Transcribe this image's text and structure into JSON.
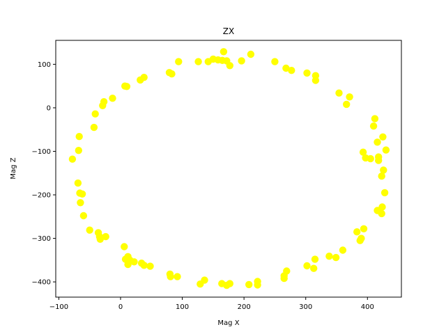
{
  "chart_data": {
    "type": "scatter",
    "title": "ZX",
    "xlabel": "Mag X",
    "ylabel": "Mag Z",
    "xlim": [
      -105,
      455
    ],
    "ylim": [
      -435,
      155
    ],
    "xticks": [
      -100,
      0,
      100,
      200,
      300,
      400
    ],
    "yticks": [
      -400,
      -300,
      -200,
      -100,
      0,
      100
    ],
    "xtick_labels": [
      "−100",
      "0",
      "100",
      "200",
      "300",
      "400"
    ],
    "ytick_labels": [
      "−400",
      "−300",
      "−200",
      "−100",
      "0",
      "100"
    ],
    "grid": false,
    "marker_color": "#ffff00",
    "series": [
      {
        "points": [
          [
            167,
            129
          ],
          [
            211,
            123
          ],
          [
            150,
            112
          ],
          [
            158,
            110
          ],
          [
            165,
            109
          ],
          [
            172,
            108
          ],
          [
            142,
            106
          ],
          [
            126,
            106
          ],
          [
            94,
            106
          ],
          [
            196,
            108
          ],
          [
            250,
            106
          ],
          [
            177,
            97
          ],
          [
            268,
            91
          ],
          [
            277,
            86
          ],
          [
            302,
            80
          ],
          [
            316,
            74
          ],
          [
            79,
            81
          ],
          [
            83,
            78
          ],
          [
            38,
            70
          ],
          [
            32,
            64
          ],
          [
            316,
            63
          ],
          [
            7,
            50
          ],
          [
            10,
            49
          ],
          [
            354,
            34
          ],
          [
            371,
            25
          ],
          [
            -13,
            22
          ],
          [
            -27,
            14
          ],
          [
            -29,
            5
          ],
          [
            366,
            8
          ],
          [
            -41,
            -14
          ],
          [
            -43,
            -45
          ],
          [
            412,
            -25
          ],
          [
            410,
            -42
          ],
          [
            -67,
            -66
          ],
          [
            425,
            -67
          ],
          [
            416,
            -79
          ],
          [
            -68,
            -98
          ],
          [
            430,
            -97
          ],
          [
            393,
            -102
          ],
          [
            397,
            -115
          ],
          [
            405,
            -117
          ],
          [
            418,
            -113
          ],
          [
            418,
            -121
          ],
          [
            -78,
            -118
          ],
          [
            426,
            -143
          ],
          [
            423,
            -157
          ],
          [
            -69,
            -173
          ],
          [
            -66,
            -196
          ],
          [
            -62,
            -198
          ],
          [
            428,
            -195
          ],
          [
            -65,
            -218
          ],
          [
            424,
            -228
          ],
          [
            416,
            -236
          ],
          [
            423,
            -243
          ],
          [
            -60,
            -248
          ],
          [
            -50,
            -281
          ],
          [
            -36,
            -287
          ],
          [
            394,
            -278
          ],
          [
            383,
            -285
          ],
          [
            -34,
            -296
          ],
          [
            -24,
            -296
          ],
          [
            -33,
            -302
          ],
          [
            390,
            -300
          ],
          [
            388,
            -305
          ],
          [
            6,
            -319
          ],
          [
            360,
            -327
          ],
          [
            12,
            -342
          ],
          [
            8,
            -348
          ],
          [
            338,
            -341
          ],
          [
            349,
            -344
          ],
          [
            315,
            -348
          ],
          [
            15,
            -350
          ],
          [
            22,
            -354
          ],
          [
            12,
            -360
          ],
          [
            34,
            -357
          ],
          [
            38,
            -362
          ],
          [
            48,
            -364
          ],
          [
            302,
            -363
          ],
          [
            313,
            -369
          ],
          [
            269,
            -375
          ],
          [
            265,
            -386
          ],
          [
            80,
            -382
          ],
          [
            81,
            -388
          ],
          [
            265,
            -392
          ],
          [
            92,
            -388
          ],
          [
            136,
            -396
          ],
          [
            222,
            -399
          ],
          [
            129,
            -405
          ],
          [
            164,
            -404
          ],
          [
            177,
            -404
          ],
          [
            172,
            -408
          ],
          [
            208,
            -406
          ],
          [
            222,
            -407
          ]
        ]
      }
    ]
  }
}
